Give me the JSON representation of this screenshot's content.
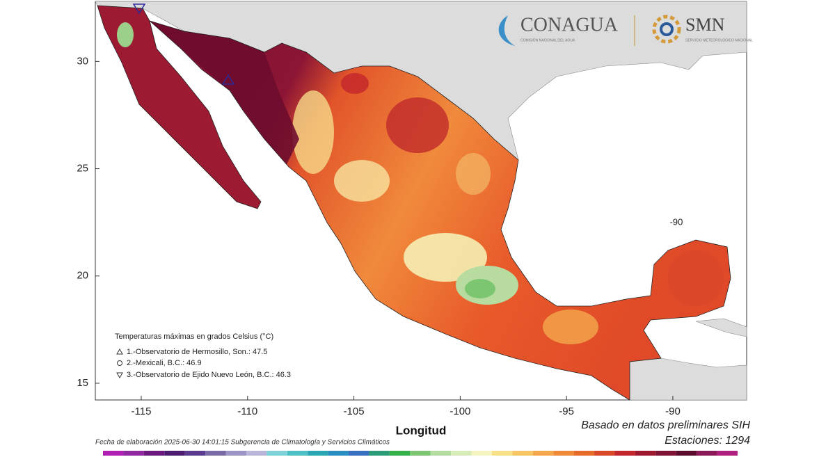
{
  "map": {
    "xlim": [
      -117.16,
      -86.53
    ],
    "ylim": [
      14.22,
      32.8
    ],
    "xticks": [
      -115,
      -110,
      -105,
      -100,
      -95,
      -90
    ],
    "yticks": [
      15,
      20,
      25,
      30
    ],
    "xlabel": "Longitud",
    "inner_label": "-90"
  },
  "logos": {
    "conagua": "CONAGUA",
    "conagua_sub": "COMISIÓN NACIONAL DEL AGUA",
    "smn": "SMN",
    "smn_sub": "SERVICIO METEOROLÓGICO NACIONAL"
  },
  "legend": {
    "title": "Temperaturas máximas en grados Celsius (°C)",
    "items": [
      "1.-Observatorio de Hermosillo, Son.: 47.5",
      "2.-Mexicali, B.C.: 46.9",
      "3.-Observatorio de Ejido Nuevo León, B.C.: 46.3"
    ]
  },
  "source": "Basado en datos preliminares SIH",
  "stations": "Estaciones:  1294",
  "footer": "Fecha de elaboración 2025-06-30 14:01:15 Subgerencia de Climatología y Servicios Climáticos",
  "colorbar": {
    "colors": [
      "#b01fb0",
      "#8e2a9e",
      "#6b1a7d",
      "#4e1c6e",
      "#5b3c8e",
      "#7a6aa8",
      "#9c94c4",
      "#b9b6dc",
      "#7fd0d8",
      "#4fbfc6",
      "#2aa7b4",
      "#2b8fc0",
      "#3a6fc0",
      "#2d9a78",
      "#38b04a",
      "#7cc672",
      "#b3dca0",
      "#d8ecb8",
      "#f6f4c0",
      "#f8e08a",
      "#f6c666",
      "#f3a84c",
      "#ee8a3a",
      "#e86a2c",
      "#d9462a",
      "#c4262c",
      "#a01830",
      "#7e1234",
      "#5a0c2c",
      "#8a1a5a",
      "#b02080"
    ]
  }
}
